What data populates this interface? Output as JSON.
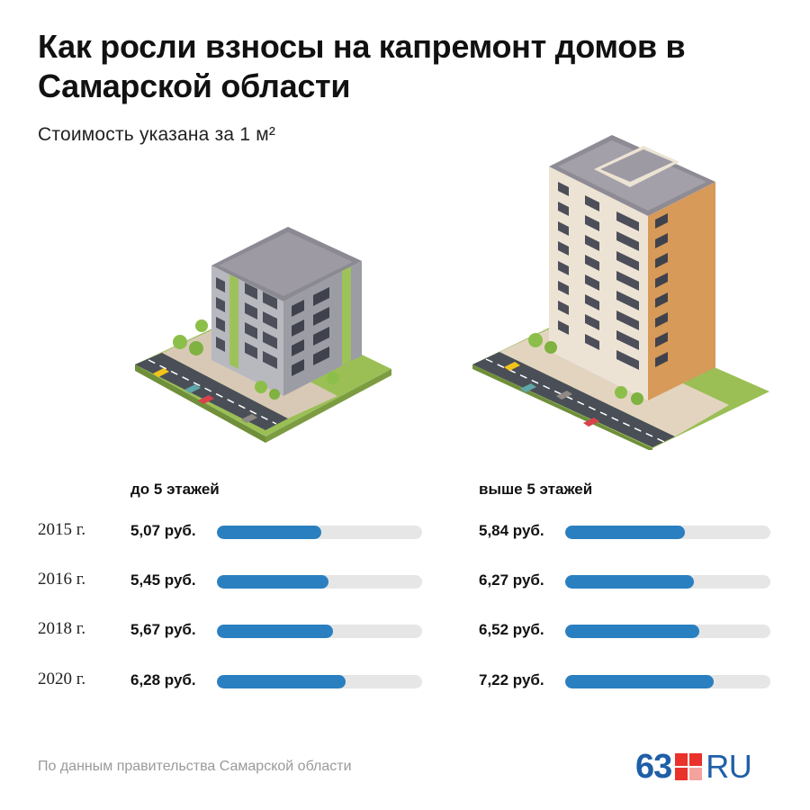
{
  "header": {
    "title": "Как росли взносы на капремонт домов в Самарской области",
    "subtitle": "Стоимость указана за 1 м²"
  },
  "colors": {
    "bar_fill": "#2a7fc0",
    "bar_track": "#e6e6e6",
    "logo_red": "#e8322b",
    "logo_blue": "#1f5fa8"
  },
  "chart_data": {
    "type": "bar",
    "orientation": "horizontal",
    "categories": [
      "2015 г.",
      "2016 г.",
      "2018 г.",
      "2020 г."
    ],
    "unit_suffix": " руб.",
    "xlim": [
      0,
      10
    ],
    "series": [
      {
        "name": "до 5 этажей",
        "values": [
          5.07,
          5.45,
          5.67,
          6.28
        ],
        "labels": [
          "5,07 руб.",
          "5,45 руб.",
          "5,67 руб.",
          "6,28 руб."
        ]
      },
      {
        "name": "выше 5 этажей",
        "values": [
          5.84,
          6.27,
          6.52,
          7.22
        ],
        "labels": [
          "5,84 руб.",
          "6,27 руб.",
          "6,52 руб.",
          "7,22 руб."
        ]
      }
    ]
  },
  "footer": {
    "source": "По данным правительства Самарской области",
    "logo_number": "63",
    "logo_suffix": "RU"
  },
  "illustrations": {
    "low_building_icon": "low-rise-building-illustration",
    "high_building_icon": "high-rise-building-illustration"
  }
}
